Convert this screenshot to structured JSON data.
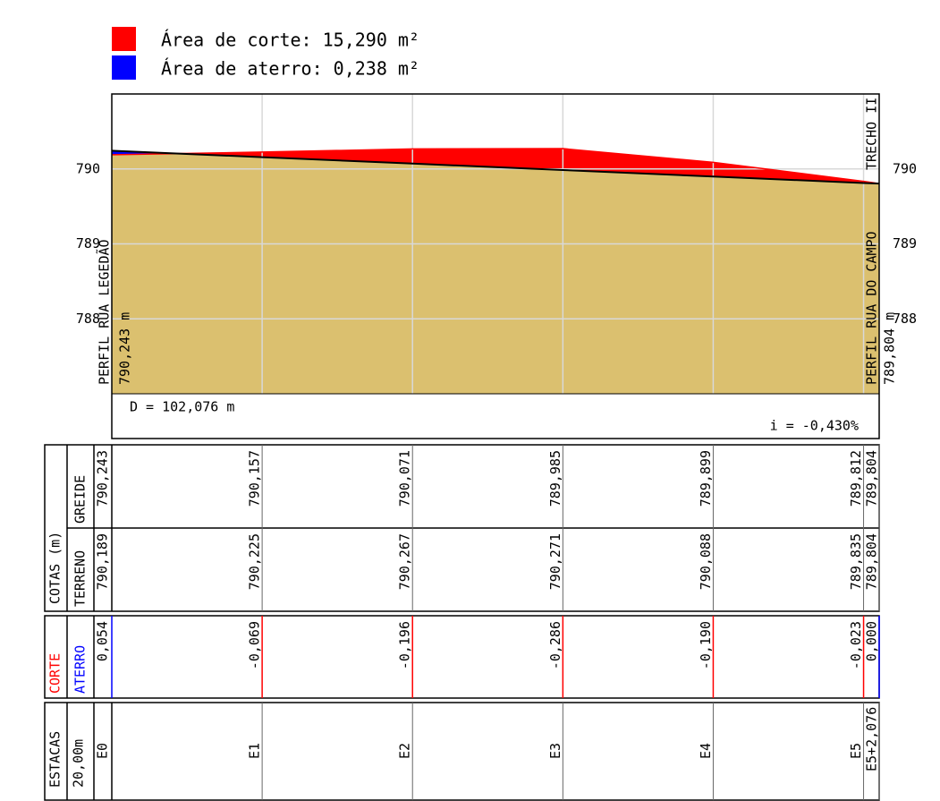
{
  "chart_data": {
    "type": "profile",
    "legend": [
      {
        "name": "Área de corte: 15,290 m²",
        "color": "#ff0000"
      },
      {
        "name": "Área de aterro: 0,238 m²",
        "color": "#0000ff"
      }
    ],
    "title": "TRECHO II",
    "start_label": "PERFIL RUA LEGEDÃO",
    "end_label": "PERFIL RUA DO CAMPO",
    "start_elevation_label": "790,243 m",
    "end_elevation_label": "789,804 m",
    "distance_label": "D = 102,076 m",
    "slope_label": "i = -0,430%",
    "ground_color": "#dbc06f",
    "x": [
      0,
      20,
      40,
      60,
      80,
      100,
      102.076
    ],
    "xlim": [
      0,
      102.076
    ],
    "ylim": [
      787,
      791
    ],
    "yticks": [
      788,
      789,
      790
    ],
    "grid": true,
    "series": [
      {
        "name": "TERRENO",
        "color": "#ff0000",
        "values": [
          790.189,
          790.225,
          790.267,
          790.271,
          790.088,
          789.835,
          789.804
        ],
        "value_labels": [
          "790,189",
          "790,225",
          "790,267",
          "790,271",
          "790,088",
          "789,835",
          "789,804"
        ]
      },
      {
        "name": "GREIDE",
        "color": "#000000",
        "values": [
          790.243,
          790.157,
          790.071,
          789.985,
          789.899,
          789.812,
          789.804
        ],
        "value_labels": [
          "790,243",
          "790,157",
          "790,071",
          "789,985",
          "789,899",
          "789,812",
          "789,804"
        ]
      }
    ],
    "cut_fill": {
      "names": [
        "CORTE",
        "ATERRO"
      ],
      "colors": [
        "#ff0000",
        "#0000ff"
      ],
      "values": [
        0.054,
        -0.069,
        -0.196,
        -0.286,
        -0.19,
        -0.023,
        0.0
      ],
      "value_labels": [
        "0,054",
        "-0,069",
        "-0,196",
        "-0,286",
        "-0,190",
        "-0,023",
        "0,000"
      ]
    },
    "table": {
      "heading": "COTAS (m)",
      "stations_heading": "ESTACAS",
      "station_spacing": "20,00m",
      "stations": [
        "E0",
        "E1",
        "E2",
        "E3",
        "E4",
        "E5",
        "E5+2,076"
      ]
    }
  }
}
